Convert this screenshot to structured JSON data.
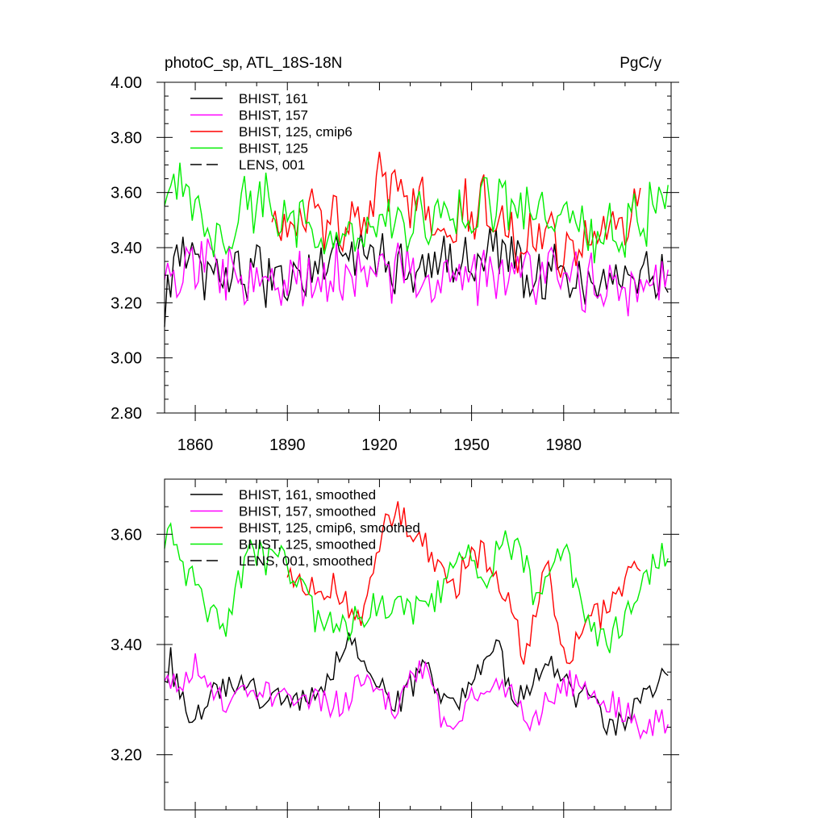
{
  "chart_data": [
    {
      "type": "line",
      "title_left": "photoC_sp, ATL_18S-18N",
      "title_right": "PgC/y",
      "xlim": [
        1850,
        2015
      ],
      "ylim": [
        2.8,
        4.0
      ],
      "x_ticks": [
        1860,
        1890,
        1920,
        1950,
        1980
      ],
      "x_tick_labels": [
        "1860",
        "1890",
        "1920",
        "1950",
        "1980"
      ],
      "y_ticks": [
        2.8,
        3.0,
        3.2,
        3.4,
        3.6,
        3.8,
        4.0
      ],
      "y_tick_labels": [
        "2.80",
        "3.00",
        "3.20",
        "3.40",
        "3.60",
        "3.80",
        "4.00"
      ],
      "legend": [
        {
          "label": "BHIST, 161",
          "color": "#000000",
          "dash": false
        },
        {
          "label": "BHIST, 157",
          "color": "#ff00ff",
          "dash": false
        },
        {
          "label": "BHIST, 125, cmip6",
          "color": "#ff0000",
          "dash": false
        },
        {
          "label": "BHIST, 125",
          "color": "#00ee00",
          "dash": false
        },
        {
          "label": "LENS, 001",
          "color": "#000000",
          "dash": true
        }
      ],
      "series": [
        {
          "name": "BHIST, 161",
          "color": "#000000",
          "start": 1850,
          "end": 2014,
          "seed": 161,
          "base": 3.32,
          "noise": 0.09,
          "wave": 0.03,
          "knots": [
            [
              1850,
              3.15
            ],
            [
              1855,
              3.45
            ],
            [
              1860,
              3.3
            ],
            [
              1870,
              3.3
            ],
            [
              1880,
              3.3
            ],
            [
              1890,
              3.3
            ],
            [
              1900,
              3.35
            ],
            [
              1910,
              3.4
            ],
            [
              1920,
              3.38
            ],
            [
              1930,
              3.3
            ],
            [
              1940,
              3.35
            ],
            [
              1950,
              3.35
            ],
            [
              1960,
              3.38
            ],
            [
              1970,
              3.3
            ],
            [
              1980,
              3.32
            ],
            [
              1990,
              3.25
            ],
            [
              2000,
              3.3
            ],
            [
              2014,
              3.3
            ]
          ]
        },
        {
          "name": "BHIST, 157",
          "color": "#ff00ff",
          "start": 1850,
          "end": 2014,
          "seed": 157,
          "base": 3.3,
          "noise": 0.1,
          "wave": 0.03,
          "knots": [
            [
              1850,
              3.3
            ],
            [
              1857,
              3.38
            ],
            [
              1870,
              3.3
            ],
            [
              1880,
              3.3
            ],
            [
              1890,
              3.3
            ],
            [
              1900,
              3.3
            ],
            [
              1910,
              3.3
            ],
            [
              1920,
              3.3
            ],
            [
              1930,
              3.32
            ],
            [
              1940,
              3.25
            ],
            [
              1950,
              3.3
            ],
            [
              1960,
              3.32
            ],
            [
              1970,
              3.27
            ],
            [
              1980,
              3.3
            ],
            [
              1990,
              3.28
            ],
            [
              2005,
              3.25
            ],
            [
              2014,
              3.25
            ]
          ]
        },
        {
          "name": "BHIST, 125, cmip6",
          "color": "#ff0000",
          "start": 1885,
          "end": 2005,
          "seed": 125,
          "base": 3.5,
          "noise": 0.1,
          "wave": 0.04,
          "knots": [
            [
              1885,
              3.5
            ],
            [
              1895,
              3.52
            ],
            [
              1905,
              3.47
            ],
            [
              1915,
              3.48
            ],
            [
              1920,
              3.62
            ],
            [
              1930,
              3.6
            ],
            [
              1940,
              3.52
            ],
            [
              1950,
              3.55
            ],
            [
              1960,
              3.5
            ],
            [
              1965,
              3.42
            ],
            [
              1970,
              3.45
            ],
            [
              1975,
              3.55
            ],
            [
              1980,
              3.38
            ],
            [
              1990,
              3.45
            ],
            [
              2005,
              3.52
            ]
          ]
        },
        {
          "name": "BHIST, 125",
          "color": "#00ee00",
          "start": 1850,
          "end": 2014,
          "seed": 225,
          "base": 3.5,
          "noise": 0.1,
          "wave": 0.04,
          "knots": [
            [
              1850,
              3.58
            ],
            [
              1855,
              3.6
            ],
            [
              1860,
              3.52
            ],
            [
              1870,
              3.44
            ],
            [
              1875,
              3.55
            ],
            [
              1880,
              3.58
            ],
            [
              1890,
              3.55
            ],
            [
              1895,
              3.5
            ],
            [
              1900,
              3.45
            ],
            [
              1910,
              3.43
            ],
            [
              1920,
              3.5
            ],
            [
              1930,
              3.48
            ],
            [
              1940,
              3.5
            ],
            [
              1950,
              3.55
            ],
            [
              1960,
              3.58
            ],
            [
              1970,
              3.5
            ],
            [
              1980,
              3.56
            ],
            [
              1990,
              3.42
            ],
            [
              2000,
              3.45
            ],
            [
              2014,
              3.57
            ]
          ]
        }
      ]
    },
    {
      "type": "line",
      "xlim": [
        1850,
        2015
      ],
      "ylim": [
        3.1,
        3.7
      ],
      "x_ticks": [
        1860,
        1890,
        1920,
        1950,
        1980
      ],
      "y_ticks": [
        3.2,
        3.4,
        3.6
      ],
      "y_tick_labels": [
        "3.20",
        "3.40",
        "3.60"
      ],
      "legend": [
        {
          "label": "BHIST, 161, smoothed",
          "color": "#000000",
          "dash": false
        },
        {
          "label": "BHIST, 157, smoothed",
          "color": "#ff00ff",
          "dash": false
        },
        {
          "label": "BHIST, 125, cmip6, smoothed",
          "color": "#ff0000",
          "dash": false
        },
        {
          "label": "BHIST, 125, smoothed",
          "color": "#00ee00",
          "dash": false
        },
        {
          "label": "LENS, 001, smoothed",
          "color": "#000000",
          "dash": true
        }
      ],
      "series": [
        {
          "name": "BHIST, 161, smoothed",
          "color": "#000000",
          "start": 1850,
          "end": 2014,
          "seed": 361,
          "base": 3.31,
          "noise": 0.025,
          "wave": 0.0,
          "knots": [
            [
              1850,
              3.34
            ],
            [
              1852,
              3.37
            ],
            [
              1855,
              3.3
            ],
            [
              1860,
              3.26
            ],
            [
              1865,
              3.3
            ],
            [
              1870,
              3.33
            ],
            [
              1875,
              3.33
            ],
            [
              1880,
              3.31
            ],
            [
              1885,
              3.3
            ],
            [
              1890,
              3.3
            ],
            [
              1895,
              3.3
            ],
            [
              1900,
              3.31
            ],
            [
              1905,
              3.36
            ],
            [
              1910,
              3.41
            ],
            [
              1915,
              3.35
            ],
            [
              1920,
              3.33
            ],
            [
              1925,
              3.29
            ],
            [
              1930,
              3.32
            ],
            [
              1935,
              3.37
            ],
            [
              1940,
              3.3
            ],
            [
              1945,
              3.28
            ],
            [
              1950,
              3.33
            ],
            [
              1955,
              3.37
            ],
            [
              1958,
              3.4
            ],
            [
              1962,
              3.33
            ],
            [
              1965,
              3.3
            ],
            [
              1970,
              3.33
            ],
            [
              1975,
              3.37
            ],
            [
              1980,
              3.33
            ],
            [
              1985,
              3.3
            ],
            [
              1990,
              3.32
            ],
            [
              1995,
              3.24
            ],
            [
              2000,
              3.26
            ],
            [
              2005,
              3.31
            ],
            [
              2012,
              3.34
            ]
          ]
        },
        {
          "name": "BHIST, 157, smoothed",
          "color": "#ff00ff",
          "start": 1850,
          "end": 2014,
          "seed": 357,
          "base": 3.3,
          "noise": 0.025,
          "wave": 0.0,
          "knots": [
            [
              1850,
              3.34
            ],
            [
              1855,
              3.32
            ],
            [
              1860,
              3.37
            ],
            [
              1865,
              3.31
            ],
            [
              1870,
              3.29
            ],
            [
              1875,
              3.3
            ],
            [
              1880,
              3.32
            ],
            [
              1885,
              3.31
            ],
            [
              1890,
              3.3
            ],
            [
              1895,
              3.29
            ],
            [
              1900,
              3.3
            ],
            [
              1905,
              3.29
            ],
            [
              1910,
              3.3
            ],
            [
              1915,
              3.34
            ],
            [
              1920,
              3.31
            ],
            [
              1925,
              3.29
            ],
            [
              1930,
              3.33
            ],
            [
              1935,
              3.36
            ],
            [
              1940,
              3.27
            ],
            [
              1945,
              3.23
            ],
            [
              1950,
              3.3
            ],
            [
              1955,
              3.33
            ],
            [
              1960,
              3.32
            ],
            [
              1965,
              3.3
            ],
            [
              1970,
              3.26
            ],
            [
              1975,
              3.3
            ],
            [
              1980,
              3.33
            ],
            [
              1985,
              3.33
            ],
            [
              1990,
              3.3
            ],
            [
              1995,
              3.3
            ],
            [
              2000,
              3.28
            ],
            [
              2005,
              3.24
            ],
            [
              2010,
              3.26
            ]
          ]
        },
        {
          "name": "BHIST, 125, cmip6, smoothed",
          "color": "#ff0000",
          "start": 1890,
          "end": 2005,
          "seed": 325,
          "base": 3.5,
          "noise": 0.03,
          "wave": 0.0,
          "knots": [
            [
              1890,
              3.53
            ],
            [
              1895,
              3.49
            ],
            [
              1900,
              3.51
            ],
            [
              1905,
              3.5
            ],
            [
              1910,
              3.47
            ],
            [
              1915,
              3.45
            ],
            [
              1918,
              3.52
            ],
            [
              1922,
              3.64
            ],
            [
              1926,
              3.63
            ],
            [
              1930,
              3.61
            ],
            [
              1935,
              3.58
            ],
            [
              1940,
              3.54
            ],
            [
              1945,
              3.5
            ],
            [
              1950,
              3.58
            ],
            [
              1955,
              3.55
            ],
            [
              1960,
              3.51
            ],
            [
              1964,
              3.44
            ],
            [
              1967,
              3.38
            ],
            [
              1970,
              3.45
            ],
            [
              1975,
              3.55
            ],
            [
              1980,
              3.38
            ],
            [
              1985,
              3.4
            ],
            [
              1990,
              3.45
            ],
            [
              1995,
              3.46
            ],
            [
              2000,
              3.52
            ],
            [
              2005,
              3.53
            ]
          ]
        },
        {
          "name": "BHIST, 125, smoothed",
          "color": "#00ee00",
          "start": 1850,
          "end": 2014,
          "seed": 425,
          "base": 3.5,
          "noise": 0.03,
          "wave": 0.0,
          "knots": [
            [
              1850,
              3.58
            ],
            [
              1852,
              3.6
            ],
            [
              1855,
              3.56
            ],
            [
              1860,
              3.5
            ],
            [
              1865,
              3.46
            ],
            [
              1870,
              3.43
            ],
            [
              1875,
              3.53
            ],
            [
              1878,
              3.58
            ],
            [
              1883,
              3.55
            ],
            [
              1888,
              3.56
            ],
            [
              1892,
              3.52
            ],
            [
              1895,
              3.5
            ],
            [
              1900,
              3.44
            ],
            [
              1905,
              3.43
            ],
            [
              1910,
              3.43
            ],
            [
              1915,
              3.46
            ],
            [
              1920,
              3.47
            ],
            [
              1925,
              3.48
            ],
            [
              1930,
              3.46
            ],
            [
              1935,
              3.47
            ],
            [
              1940,
              3.5
            ],
            [
              1945,
              3.56
            ],
            [
              1950,
              3.55
            ],
            [
              1955,
              3.53
            ],
            [
              1960,
              3.58
            ],
            [
              1965,
              3.58
            ],
            [
              1970,
              3.5
            ],
            [
              1975,
              3.52
            ],
            [
              1980,
              3.58
            ],
            [
              1985,
              3.5
            ],
            [
              1990,
              3.42
            ],
            [
              1995,
              3.41
            ],
            [
              2000,
              3.45
            ],
            [
              2005,
              3.52
            ],
            [
              2014,
              3.57
            ]
          ]
        }
      ]
    }
  ]
}
